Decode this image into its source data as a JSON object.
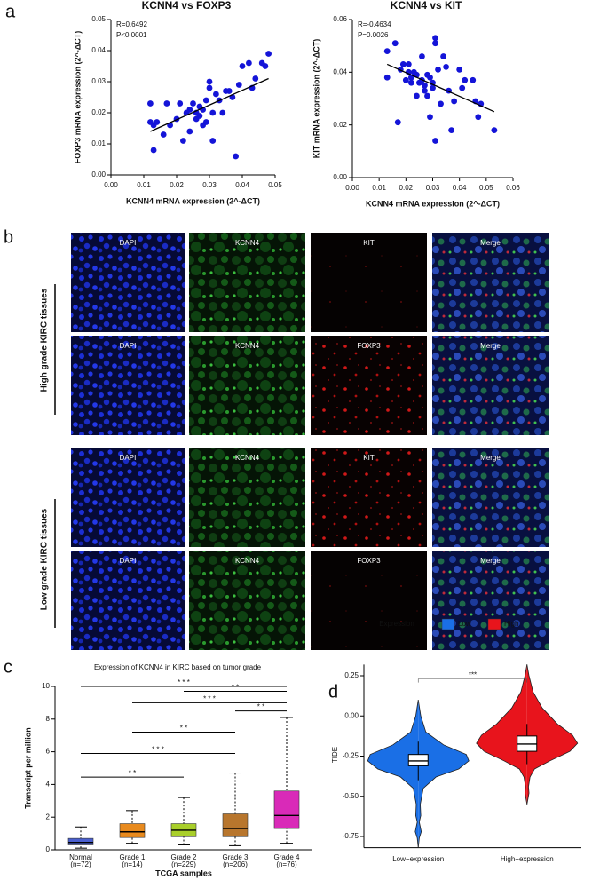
{
  "panel_labels": [
    "a",
    "b",
    "c",
    "d"
  ],
  "images": {
    "group_labels": [
      "High grade KIRC tissues",
      "Low  grade KIRC tissues"
    ],
    "rows": [
      [
        "DAPI",
        "KCNN4",
        "KIT",
        "Merge"
      ],
      [
        "DAPI",
        "KCNN4",
        "FOXP3",
        "Merge"
      ],
      [
        "DAPI",
        "KCNN4",
        "KIT",
        "Merge"
      ],
      [
        "DAPI",
        "KCNN4",
        "FOXP3",
        "Merge"
      ]
    ]
  },
  "chart_data": [
    {
      "type": "scatter",
      "title": "KCNN4 vs FOXP3",
      "x_label": "KCNN4 mRNA  expression (2^-ΔCT)",
      "y_label": "FOXP3 mRNA expression (2^-ΔCT)",
      "annotations": [
        "R=0.6492",
        "P<0.0001"
      ],
      "color": "#1414d8",
      "x": [
        0.012,
        0.012,
        0.013,
        0.013,
        0.014,
        0.016,
        0.017,
        0.018,
        0.02,
        0.021,
        0.022,
        0.023,
        0.024,
        0.024,
        0.025,
        0.026,
        0.026,
        0.027,
        0.027,
        0.028,
        0.028,
        0.029,
        0.029,
        0.03,
        0.03,
        0.031,
        0.031,
        0.032,
        0.033,
        0.034,
        0.035,
        0.036,
        0.037,
        0.038,
        0.039,
        0.04,
        0.042,
        0.043,
        0.044,
        0.046,
        0.047,
        0.048
      ],
      "y": [
        0.017,
        0.023,
        0.016,
        0.008,
        0.017,
        0.013,
        0.023,
        0.016,
        0.018,
        0.023,
        0.011,
        0.02,
        0.021,
        0.014,
        0.023,
        0.018,
        0.02,
        0.019,
        0.022,
        0.016,
        0.021,
        0.017,
        0.024,
        0.03,
        0.028,
        0.011,
        0.02,
        0.026,
        0.024,
        0.02,
        0.027,
        0.027,
        0.025,
        0.006,
        0.029,
        0.035,
        0.036,
        0.028,
        0.031,
        0.036,
        0.035,
        0.039
      ],
      "trend_line": {
        "x": [
          0.012,
          0.048
        ],
        "y": [
          0.014,
          0.031
        ]
      },
      "xlim": [
        0,
        0.05
      ],
      "xticks": [
        {
          "value": 0,
          "label": "0.00"
        },
        0.01,
        0.02,
        0.03,
        0.04,
        0.05
      ],
      "ylim": [
        0,
        0.05
      ],
      "yticks": [
        {
          "value": 0,
          "label": "0.00"
        },
        0.01,
        0.02,
        0.03,
        0.04,
        0.05
      ]
    },
    {
      "type": "scatter",
      "title": "KCNN4 vs KIT",
      "x_label": "KCNN4 mRNA  expression (2^-ΔCT)",
      "y_label": "KIT mRNA expression (2^-ΔCT)",
      "annotations": [
        "R=-0.4634",
        "P=0.0026"
      ],
      "color": "#1414d8",
      "x": [
        0.013,
        0.013,
        0.016,
        0.017,
        0.018,
        0.019,
        0.02,
        0.021,
        0.021,
        0.022,
        0.022,
        0.023,
        0.024,
        0.024,
        0.025,
        0.026,
        0.026,
        0.027,
        0.027,
        0.028,
        0.028,
        0.029,
        0.029,
        0.03,
        0.03,
        0.031,
        0.031,
        0.031,
        0.032,
        0.033,
        0.034,
        0.035,
        0.036,
        0.037,
        0.038,
        0.04,
        0.041,
        0.042,
        0.045,
        0.046,
        0.047,
        0.048,
        0.053
      ],
      "y": [
        0.048,
        0.038,
        0.051,
        0.021,
        0.041,
        0.043,
        0.037,
        0.043,
        0.04,
        0.038,
        0.036,
        0.04,
        0.039,
        0.031,
        0.036,
        0.046,
        0.037,
        0.035,
        0.033,
        0.039,
        0.031,
        0.038,
        0.023,
        0.036,
        0.034,
        0.053,
        0.051,
        0.014,
        0.041,
        0.028,
        0.046,
        0.042,
        0.033,
        0.018,
        0.029,
        0.041,
        0.034,
        0.037,
        0.037,
        0.029,
        0.023,
        0.028,
        0.018
      ],
      "trend_line": {
        "x": [
          0.013,
          0.053
        ],
        "y": [
          0.043,
          0.025
        ]
      },
      "xlim": [
        0,
        0.06
      ],
      "xticks": [
        {
          "value": 0,
          "label": "0.00"
        },
        0.01,
        0.02,
        0.03,
        0.04,
        0.05,
        0.06
      ],
      "ylim": [
        0,
        0.06
      ],
      "yticks": [
        {
          "value": 0,
          "label": "0.00"
        },
        0.02,
        0.04,
        0.06
      ]
    },
    {
      "type": "box",
      "title": "Expression of KCNN4 in KIRC based on tumor grade",
      "x_label": "TCGA samples",
      "y_label": "Transcript per million",
      "categories": [
        "Normal",
        "Grade 1",
        "Grade 2",
        "Grade 3",
        "Grade 4"
      ],
      "category_notes": [
        "(n=72)",
        "(n=14)",
        "(n=229)",
        "(n=206)",
        "(n=76)"
      ],
      "boxes": [
        {
          "min": 0.1,
          "q1": 0.3,
          "median": 0.45,
          "q3": 0.7,
          "max": 1.4,
          "color": "#4a5fcf"
        },
        {
          "min": 0.4,
          "q1": 0.75,
          "median": 1.1,
          "q3": 1.6,
          "max": 2.4,
          "color": "#e88a1e"
        },
        {
          "min": 0.3,
          "q1": 0.8,
          "median": 1.2,
          "q3": 1.6,
          "max": 3.2,
          "color": "#a9cf2a"
        },
        {
          "min": 0.25,
          "q1": 0.8,
          "median": 1.3,
          "q3": 2.2,
          "max": 4.7,
          "color": "#b8762d"
        },
        {
          "min": 0.4,
          "q1": 1.3,
          "median": 2.1,
          "q3": 3.6,
          "max": 8.1,
          "color": "#d92ab8"
        }
      ],
      "significance": [
        {
          "from": 0,
          "to": 4,
          "y": 10,
          "label": "* * *"
        },
        {
          "from": 2,
          "to": 4,
          "y": 9.7,
          "label": "* *"
        },
        {
          "from": 1,
          "to": 4,
          "y": 9.0,
          "label": "* * *"
        },
        {
          "from": 3,
          "to": 4,
          "y": 8.5,
          "label": "* *"
        },
        {
          "from": 1,
          "to": 3,
          "y": 7.2,
          "label": "* *"
        },
        {
          "from": 0,
          "to": 3,
          "y": 5.9,
          "label": "* * *"
        },
        {
          "from": 0,
          "to": 2,
          "y": 4.45,
          "label": "* *"
        }
      ],
      "ylim": [
        0,
        10
      ],
      "yticks": [
        0,
        2,
        4,
        6,
        8,
        10
      ]
    },
    {
      "type": "violin",
      "y_label": "TIDE",
      "legend_title": "Expression",
      "categories": [
        "Low−expression",
        "High−expression"
      ],
      "series": [
        {
          "name": "Low",
          "color": "#1a6fe6",
          "box": {
            "min": -0.4,
            "q1": -0.31,
            "median": -0.28,
            "q3": -0.24,
            "max": -0.16
          },
          "density_y": [
            0.1,
            0.0,
            -0.1,
            -0.18,
            -0.24,
            -0.28,
            -0.33,
            -0.38,
            -0.45,
            -0.55,
            -0.62,
            -0.66,
            -0.72,
            -0.76,
            -0.82
          ],
          "density": [
            0,
            0.05,
            0.15,
            0.5,
            0.95,
            1,
            0.8,
            0.35,
            0.1,
            0.04,
            0.05,
            0.02,
            0.06,
            0.02,
            0
          ]
        },
        {
          "name": "High",
          "color": "#e8141c",
          "box": {
            "min": -0.3,
            "q1": -0.22,
            "median": -0.175,
            "q3": -0.125,
            "max": -0.05
          },
          "density_y": [
            0.32,
            0.25,
            0.15,
            0.05,
            -0.05,
            -0.12,
            -0.17,
            -0.22,
            -0.28,
            -0.33,
            -0.38,
            -0.44,
            -0.48,
            -0.55
          ],
          "density": [
            0,
            0.04,
            0.12,
            0.3,
            0.6,
            0.9,
            1,
            0.85,
            0.45,
            0.15,
            0.06,
            0.03,
            0.04,
            0
          ]
        }
      ],
      "significance": [
        {
          "from": 0,
          "to": 1,
          "y": 0.23,
          "label": "***"
        }
      ],
      "ylim": [
        -0.82,
        0.32
      ],
      "yticks": [
        0.25,
        {
          "value": 0,
          "label": "0.00"
        },
        -0.25,
        {
          "value": -0.5,
          "label": "-0.50"
        },
        -0.75
      ]
    }
  ]
}
